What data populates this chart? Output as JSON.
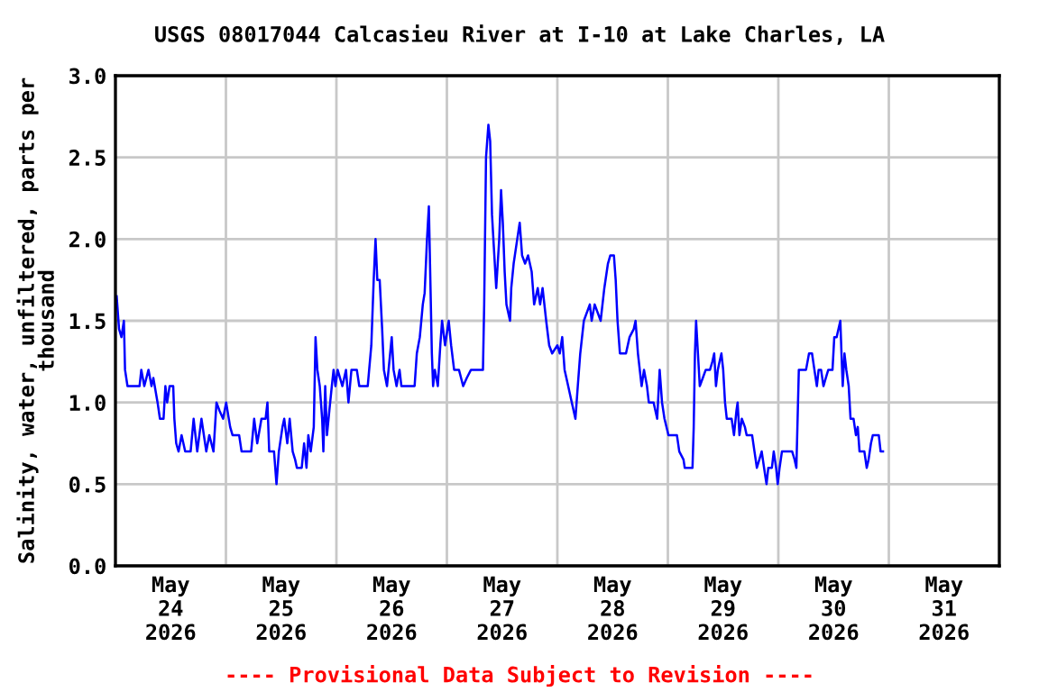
{
  "chart_data": {
    "type": "line",
    "title": "USGS 08017044 Calcasieu River at I-10 at Lake Charles, LA",
    "ylabel": "Salinity, water, unfiltered, parts per\nthousand",
    "annotations": [
      "---- Provisional Data Subject to Revision ----"
    ],
    "xlim": [
      "2026-05-24T00:00",
      "2026-06-01T00:00"
    ],
    "xticks": [
      {
        "value": "2026-05-24T12:00",
        "label": "May\n24\n2026"
      },
      {
        "value": "2026-05-25T12:00",
        "label": "May\n25\n2026"
      },
      {
        "value": "2026-05-26T12:00",
        "label": "May\n26\n2026"
      },
      {
        "value": "2026-05-27T12:00",
        "label": "May\n27\n2026"
      },
      {
        "value": "2026-05-28T12:00",
        "label": "May\n28\n2026"
      },
      {
        "value": "2026-05-29T12:00",
        "label": "May\n29\n2026"
      },
      {
        "value": "2026-05-30T12:00",
        "label": "May\n30\n2026"
      },
      {
        "value": "2026-05-31T12:00",
        "label": "May\n31\n2026"
      },
      {
        "value": "2026-05-25T00:00",
        "label": null
      },
      {
        "value": "2026-05-26T00:00",
        "label": null
      },
      {
        "value": "2026-05-27T00:00",
        "label": null
      },
      {
        "value": "2026-05-28T00:00",
        "label": null
      },
      {
        "value": "2026-05-29T00:00",
        "label": null
      },
      {
        "value": "2026-05-30T00:00",
        "label": null
      },
      {
        "value": "2026-05-31T00:00",
        "label": null
      }
    ],
    "ylim": [
      0,
      3
    ],
    "yticks": [
      {
        "value": 0,
        "label": "0.0"
      },
      {
        "value": 0.5,
        "label": "0.5"
      },
      {
        "value": 1,
        "label": "1.0"
      },
      {
        "value": 1.5,
        "label": "1.5"
      },
      {
        "value": 2,
        "label": "2.0"
      },
      {
        "value": 2.5,
        "label": "2.5"
      },
      {
        "value": 3,
        "label": "3.0"
      }
    ],
    "grid": true,
    "series": [
      {
        "color": "#0000ff",
        "x": [
          "2026-05-24T00:16",
          "2026-05-24T00:47",
          "2026-05-24T01:18",
          "2026-05-24T01:50",
          "2026-05-24T02:05",
          "2026-05-24T02:37",
          "2026-05-24T05:14",
          "2026-05-24T05:37",
          "2026-05-24T06:16",
          "2026-05-24T07:11",
          "2026-05-24T07:50",
          "2026-05-24T08:14",
          "2026-05-24T09:09",
          "2026-05-24T09:40",
          "2026-05-24T10:27",
          "2026-05-24T10:51",
          "2026-05-24T11:14",
          "2026-05-24T11:46",
          "2026-05-24T12:33",
          "2026-05-24T12:48",
          "2026-05-24T13:12",
          "2026-05-24T13:43",
          "2026-05-24T14:22",
          "2026-05-24T15:09",
          "2026-05-24T16:20",
          "2026-05-24T16:59",
          "2026-05-24T17:46",
          "2026-05-24T18:41",
          "2026-05-24T19:44",
          "2026-05-24T20:23",
          "2026-05-24T21:18",
          "2026-05-24T21:57",
          "2026-05-24T22:36",
          "2026-05-24T23:23",
          "2026-05-25T00:03",
          "2026-05-25T00:55",
          "2026-05-25T01:26",
          "2026-05-25T02:52",
          "2026-05-25T03:24",
          "2026-05-25T05:29",
          "2026-05-25T06:08",
          "2026-05-25T06:48",
          "2026-05-25T07:43",
          "2026-05-25T08:37",
          "2026-05-25T09:01",
          "2026-05-25T09:24",
          "2026-05-25T10:27",
          "2026-05-25T10:59",
          "2026-05-25T11:30",
          "2026-05-25T12:17",
          "2026-05-25T12:40",
          "2026-05-25T13:20",
          "2026-05-25T13:51",
          "2026-05-25T14:30",
          "2026-05-25T15:02",
          "2026-05-25T15:25",
          "2026-05-25T16:28",
          "2026-05-25T16:59",
          "2026-05-25T17:30",
          "2026-05-25T17:54",
          "2026-05-25T18:25",
          "2026-05-25T19:05",
          "2026-05-25T19:28",
          "2026-05-25T19:52",
          "2026-05-25T20:23",
          "2026-05-25T20:54",
          "2026-05-25T21:10",
          "2026-05-25T21:34",
          "2026-05-25T21:57",
          "2026-05-25T22:28",
          "2026-05-25T23:00",
          "2026-05-25T23:23",
          "2026-05-25T23:47",
          "2026-05-26T00:16",
          "2026-05-26T01:18",
          "2026-05-26T02:05",
          "2026-05-26T02:37",
          "2026-05-26T03:16",
          "2026-05-26T04:26",
          "2026-05-26T04:58",
          "2026-05-26T06:48",
          "2026-05-26T07:35",
          "2026-05-26T08:06",
          "2026-05-26T08:30",
          "2026-05-26T08:53",
          "2026-05-26T09:24",
          "2026-05-26T09:56",
          "2026-05-26T10:19",
          "2026-05-26T10:59",
          "2026-05-26T11:30",
          "2026-05-26T12:01",
          "2026-05-26T12:25",
          "2026-05-26T13:04",
          "2026-05-26T13:43",
          "2026-05-26T14:07",
          "2026-05-26T16:59",
          "2026-05-26T17:28",
          "2026-05-26T18:07",
          "2026-05-26T18:46",
          "2026-05-26T19:10",
          "2026-05-26T19:41",
          "2026-05-26T20:05",
          "2026-05-26T20:20",
          "2026-05-26T20:44",
          "2026-05-26T21:00",
          "2026-05-26T21:23",
          "2026-05-26T22:02",
          "2026-05-26T22:34",
          "2026-05-26T22:57",
          "2026-05-26T23:36",
          "2026-05-27T00:24",
          "2026-05-27T00:55",
          "2026-05-27T01:34",
          "2026-05-27T02:37",
          "2026-05-27T03:32",
          "2026-05-27T04:19",
          "2026-05-27T05:14",
          "2026-05-27T07:50",
          "2026-05-27T08:06",
          "2026-05-27T08:30",
          "2026-05-27T09:01",
          "2026-05-27T09:24",
          "2026-05-27T09:48",
          "2026-05-27T10:12",
          "2026-05-27T10:43",
          "2026-05-27T11:22",
          "2026-05-27T11:46",
          "2026-05-27T12:09",
          "2026-05-27T12:33",
          "2026-05-27T12:56",
          "2026-05-27T13:43",
          "2026-05-27T13:59",
          "2026-05-27T14:30",
          "2026-05-27T15:17",
          "2026-05-27T15:49",
          "2026-05-27T16:20",
          "2026-05-27T16:59",
          "2026-05-27T17:38",
          "2026-05-27T18:25",
          "2026-05-27T18:57",
          "2026-05-27T19:44",
          "2026-05-27T20:15",
          "2026-05-27T20:47",
          "2026-05-27T21:34",
          "2026-05-27T22:13",
          "2026-05-27T22:52",
          "2026-05-28T00:00",
          "2026-05-28T00:31",
          "2026-05-28T01:03",
          "2026-05-28T01:34",
          "2026-05-28T02:21",
          "2026-05-28T03:08",
          "2026-05-28T03:55",
          "2026-05-28T04:26",
          "2026-05-28T04:58",
          "2026-05-28T05:45",
          "2026-05-28T07:03",
          "2026-05-28T07:27",
          "2026-05-28T08:06",
          "2026-05-28T09:24",
          "2026-05-28T10:12",
          "2026-05-28T10:59",
          "2026-05-28T11:30",
          "2026-05-28T12:17",
          "2026-05-28T12:40",
          "2026-05-28T13:04",
          "2026-05-28T13:35",
          "2026-05-28T14:54",
          "2026-05-28T15:41",
          "2026-05-28T16:36",
          "2026-05-28T16:59",
          "2026-05-28T17:30",
          "2026-05-28T18:18",
          "2026-05-28T18:49",
          "2026-05-28T19:28",
          "2026-05-28T19:52",
          "2026-05-28T20:54",
          "2026-05-28T21:41",
          "2026-05-28T22:13",
          "2026-05-28T22:44",
          "2026-05-28T23:16",
          "2026-05-29T00:08",
          "2026-05-29T01:58",
          "2026-05-29T02:29",
          "2026-05-29T03:24",
          "2026-05-29T03:40",
          "2026-05-29T05:21",
          "2026-05-29T05:37",
          "2026-05-29T05:53",
          "2026-05-29T06:08",
          "2026-05-29T06:32",
          "2026-05-29T06:56",
          "2026-05-29T07:35",
          "2026-05-29T08:14",
          "2026-05-29T09:09",
          "2026-05-29T09:40",
          "2026-05-29T10:04",
          "2026-05-29T10:27",
          "2026-05-29T10:51",
          "2026-05-29T11:14",
          "2026-05-29T11:38",
          "2026-05-29T12:01",
          "2026-05-29T12:25",
          "2026-05-29T12:48",
          "2026-05-29T13:51",
          "2026-05-29T14:22",
          "2026-05-29T14:54",
          "2026-05-29T15:09",
          "2026-05-29T15:33",
          "2026-05-29T16:04",
          "2026-05-29T16:44",
          "2026-05-29T17:07",
          "2026-05-29T18:18",
          "2026-05-29T18:49",
          "2026-05-29T19:20",
          "2026-05-29T19:52",
          "2026-05-29T20:23",
          "2026-05-29T20:54",
          "2026-05-29T21:26",
          "2026-05-29T21:49",
          "2026-05-29T22:36",
          "2026-05-29T23:00",
          "2026-05-29T23:31",
          "2026-05-29T23:52",
          "2026-05-30T00:16",
          "2026-05-30T00:47",
          "2026-05-30T03:00",
          "2026-05-30T03:32",
          "2026-05-30T03:55",
          "2026-05-30T04:11",
          "2026-05-30T04:27",
          "2026-05-30T06:01",
          "2026-05-30T06:40",
          "2026-05-30T07:19",
          "2026-05-30T07:50",
          "2026-05-30T08:22",
          "2026-05-30T08:45",
          "2026-05-30T09:17",
          "2026-05-30T09:48",
          "2026-05-30T10:19",
          "2026-05-30T10:51",
          "2026-05-30T11:46",
          "2026-05-30T12:09",
          "2026-05-30T12:40",
          "2026-05-30T13:04",
          "2026-05-30T13:28",
          "2026-05-30T13:43",
          "2026-05-30T13:59",
          "2026-05-30T14:22",
          "2026-05-30T14:46",
          "2026-05-30T15:17",
          "2026-05-30T15:41",
          "2026-05-30T16:20",
          "2026-05-30T16:51",
          "2026-05-30T17:15",
          "2026-05-30T17:38",
          "2026-05-30T18:41",
          "2026-05-30T19:12",
          "2026-05-30T19:36",
          "2026-05-30T20:07",
          "2026-05-30T20:31",
          "2026-05-30T21:49",
          "2026-05-30T22:13",
          "2026-05-30T22:44"
        ],
        "values": [
          1.65,
          1.45,
          1.4,
          1.5,
          1.2,
          1.1,
          1.1,
          1.2,
          1.1,
          1.2,
          1.1,
          1.15,
          1.0,
          0.9,
          0.9,
          1.1,
          1.0,
          1.1,
          1.1,
          0.9,
          0.75,
          0.7,
          0.8,
          0.7,
          0.7,
          0.9,
          0.7,
          0.9,
          0.7,
          0.8,
          0.7,
          1.0,
          0.95,
          0.9,
          1.0,
          0.85,
          0.8,
          0.8,
          0.7,
          0.7,
          0.9,
          0.75,
          0.9,
          0.9,
          1.0,
          0.7,
          0.7,
          0.5,
          0.7,
          0.85,
          0.9,
          0.75,
          0.9,
          0.7,
          0.65,
          0.6,
          0.6,
          0.75,
          0.6,
          0.8,
          0.7,
          0.85,
          1.4,
          1.2,
          1.1,
          0.9,
          0.7,
          1.1,
          0.8,
          0.95,
          1.1,
          1.2,
          1.1,
          1.2,
          1.1,
          1.2,
          1.0,
          1.2,
          1.2,
          1.1,
          1.1,
          1.35,
          1.75,
          2.0,
          1.75,
          1.75,
          1.45,
          1.2,
          1.1,
          1.25,
          1.4,
          1.2,
          1.1,
          1.2,
          1.1,
          1.1,
          1.3,
          1.4,
          1.6,
          1.67,
          2.0,
          2.2,
          1.85,
          1.3,
          1.1,
          1.2,
          1.1,
          1.35,
          1.5,
          1.35,
          1.5,
          1.35,
          1.2,
          1.2,
          1.1,
          1.15,
          1.2,
          1.2,
          1.6,
          2.5,
          2.7,
          2.6,
          2.15,
          1.95,
          1.7,
          2.0,
          2.3,
          2.1,
          1.8,
          1.6,
          1.5,
          1.7,
          1.85,
          2.0,
          2.1,
          1.9,
          1.85,
          1.9,
          1.8,
          1.6,
          1.7,
          1.6,
          1.7,
          1.5,
          1.35,
          1.3,
          1.35,
          1.3,
          1.4,
          1.2,
          1.1,
          1.0,
          0.9,
          1.1,
          1.3,
          1.5,
          1.6,
          1.5,
          1.6,
          1.5,
          1.7,
          1.85,
          1.9,
          1.9,
          1.75,
          1.5,
          1.3,
          1.3,
          1.4,
          1.45,
          1.5,
          1.3,
          1.1,
          1.2,
          1.1,
          1.0,
          1.0,
          0.9,
          1.2,
          1.0,
          0.9,
          0.8,
          0.8,
          0.7,
          0.65,
          0.6,
          0.6,
          0.85,
          1.3,
          1.5,
          1.3,
          1.1,
          1.15,
          1.2,
          1.2,
          1.25,
          1.3,
          1.1,
          1.2,
          1.25,
          1.3,
          1.2,
          1.0,
          0.9,
          0.9,
          0.8,
          0.95,
          1.0,
          0.8,
          0.9,
          0.85,
          0.8,
          0.8,
          0.7,
          0.6,
          0.65,
          0.7,
          0.6,
          0.5,
          0.6,
          0.6,
          0.7,
          0.6,
          0.5,
          0.6,
          0.7,
          0.7,
          0.65,
          0.6,
          0.9,
          1.2,
          1.2,
          1.3,
          1.3,
          1.2,
          1.1,
          1.2,
          1.2,
          1.1,
          1.15,
          1.2,
          1.2,
          1.4,
          1.4,
          1.45,
          1.5,
          1.3,
          1.1,
          1.3,
          1.2,
          1.1,
          0.9,
          0.9,
          0.8,
          0.85,
          0.7,
          0.7,
          0.6,
          0.65,
          0.75,
          0.8,
          0.8,
          0.7,
          0.7
        ]
      }
    ]
  }
}
